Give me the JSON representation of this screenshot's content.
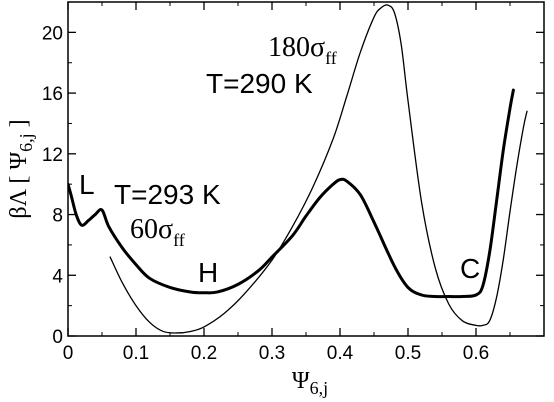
{
  "chart_data": {
    "type": "line",
    "title": "",
    "xlabel": "Ψ",
    "xlabel_sub": "6,j",
    "ylabel_prefix": "βΛ [ Ψ",
    "ylabel_sub": "6,j",
    "ylabel_suffix": " ]",
    "xlim": [
      0,
      0.7
    ],
    "ylim": [
      0,
      22
    ],
    "x_ticks": [
      0,
      0.1,
      0.2,
      0.3,
      0.4,
      0.5,
      0.6
    ],
    "x_tick_labels": [
      "0",
      "0.1",
      "0.2",
      "0.3",
      "0.4",
      "0.5",
      "0.6"
    ],
    "y_ticks": [
      0,
      4,
      8,
      12,
      16,
      20
    ],
    "y_tick_labels": [
      "0",
      "4",
      "8",
      "12",
      "16",
      "20"
    ],
    "grid": false,
    "series": [
      {
        "style": "thick",
        "x": [
          0.0,
          0.005,
          0.012,
          0.02,
          0.03,
          0.04,
          0.05,
          0.06,
          0.08,
          0.1,
          0.12,
          0.15,
          0.18,
          0.2,
          0.22,
          0.25,
          0.28,
          0.3,
          0.33,
          0.35,
          0.37,
          0.39,
          0.4,
          0.41,
          0.43,
          0.45,
          0.48,
          0.5,
          0.52,
          0.54,
          0.56,
          0.58,
          0.6,
          0.61,
          0.62,
          0.63,
          0.64,
          0.65,
          0.655
        ],
        "y": [
          10.0,
          9.2,
          8.0,
          7.3,
          7.6,
          8.0,
          8.3,
          7.2,
          5.8,
          4.7,
          3.8,
          3.2,
          2.9,
          2.85,
          2.9,
          3.4,
          4.3,
          5.2,
          6.6,
          7.9,
          9.1,
          10.0,
          10.3,
          10.2,
          9.3,
          7.5,
          4.6,
          3.2,
          2.7,
          2.6,
          2.6,
          2.6,
          2.7,
          3.3,
          5.5,
          8.8,
          12.2,
          15.0,
          16.2
        ]
      },
      {
        "style": "thin",
        "x": [
          0.062,
          0.08,
          0.1,
          0.12,
          0.14,
          0.16,
          0.18,
          0.2,
          0.23,
          0.26,
          0.3,
          0.33,
          0.36,
          0.39,
          0.41,
          0.43,
          0.45,
          0.46,
          0.47,
          0.48,
          0.49,
          0.5,
          0.52,
          0.54,
          0.56,
          0.58,
          0.6,
          0.61,
          0.62,
          0.63,
          0.64,
          0.65,
          0.66,
          0.67,
          0.675
        ],
        "y": [
          5.2,
          3.5,
          2.0,
          0.9,
          0.3,
          0.2,
          0.3,
          0.6,
          1.5,
          2.8,
          5.0,
          7.2,
          9.8,
          13.0,
          15.8,
          18.7,
          21.0,
          21.6,
          21.8,
          21.3,
          19.2,
          15.5,
          8.8,
          4.5,
          2.1,
          1.0,
          0.7,
          0.7,
          1.0,
          2.5,
          5.0,
          8.2,
          11.2,
          13.8,
          14.8
        ]
      }
    ],
    "annotations": [
      {
        "text": "L"
      },
      {
        "text": "T=293 K"
      },
      {
        "text": "60σ",
        "sub": "ff"
      },
      {
        "text": "H"
      },
      {
        "text": "180σ",
        "sub": "ff"
      },
      {
        "text": "T=290 K"
      },
      {
        "text": "C"
      }
    ]
  }
}
